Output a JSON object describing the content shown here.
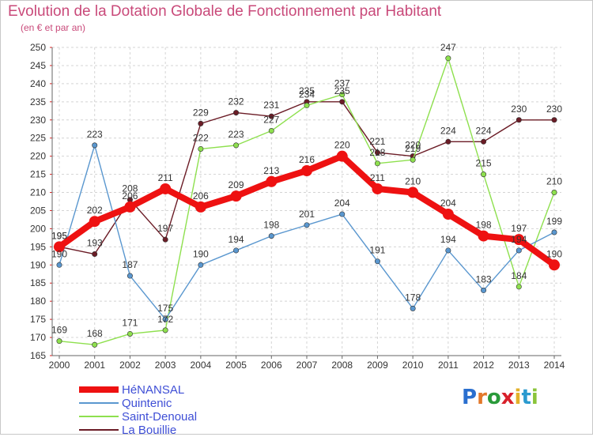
{
  "title": "Evolution de la Dotation Globale de Fonctionnement par Habitant",
  "subtitle": "(en € et par an)",
  "logo_text": "Proxiti",
  "chart_data": {
    "type": "line",
    "title": "Evolution de la Dotation Globale de Fonctionnement par Habitant",
    "subtitle": "(en € et par an)",
    "xlabel": "",
    "ylabel": "",
    "ylim": [
      165,
      250
    ],
    "ytick_step": 5,
    "grid": true,
    "legend_position": "bottom-left",
    "categories": [
      "2000",
      "2001",
      "2002",
      "2003",
      "2004",
      "2005",
      "2006",
      "2007",
      "2008",
      "2009",
      "2010",
      "2011",
      "2012",
      "2013",
      "2014"
    ],
    "series": [
      {
        "name": "HéNANSAL",
        "color": "#ee1111",
        "values": [
          195,
          202,
          206,
          211,
          206,
          209,
          213,
          216,
          220,
          211,
          210,
          204,
          198,
          197,
          190
        ]
      },
      {
        "name": "Quintenic",
        "color": "#5a97cf",
        "values": [
          190,
          223,
          187,
          175,
          190,
          194,
          198,
          201,
          204,
          191,
          178,
          194,
          183,
          194,
          199
        ]
      },
      {
        "name": "Saint-Denoual",
        "color": "#8ee04e",
        "values": [
          169,
          168,
          171,
          172,
          222,
          223,
          227,
          234,
          237,
          218,
          219,
          247,
          215,
          184,
          210
        ]
      },
      {
        "name": "La Bouillie",
        "color": "#6b1c26",
        "values": [
          195,
          193,
          208,
          197,
          229,
          232,
          231,
          235,
          235,
          221,
          220,
          224,
          224,
          230,
          230
        ]
      }
    ]
  }
}
